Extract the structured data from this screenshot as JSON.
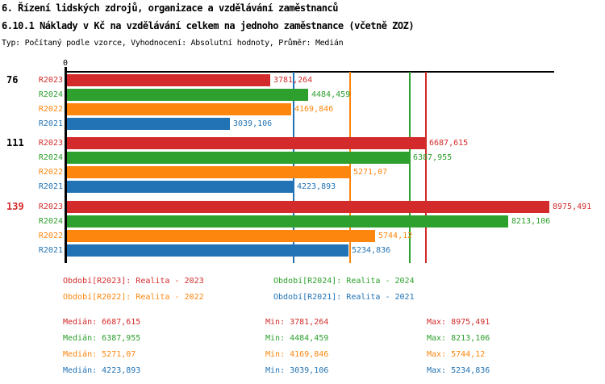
{
  "header": {
    "title": "6. Řízení lidských zdrojů, organizace a vzdělávání zaměstnanců",
    "subtitle": "6.10.1 Náklady v Kč na vzdělávání celkem na jednoho zaměstnance (včetně ZOZ)",
    "meta": "Typ: Počítaný podle vzorce, Vyhodnocení: Absolutní hodnoty, Průměr: Medián"
  },
  "colors": {
    "r2023": "#d32b2b",
    "r2024": "#2da02d",
    "r2022": "#fd860e",
    "r2021": "#2273b5",
    "axis": "#000000",
    "background": "#ffffff"
  },
  "chart_data": {
    "type": "bar",
    "orientation": "horizontal",
    "title": "6.10.1 Náklady v Kč na vzdělávání celkem na jednoho zaměstnance (včetně ZOZ)",
    "value_axis": {
      "origin_tick": "0",
      "min": 0,
      "max": 9087,
      "gridlines": false
    },
    "series": [
      {
        "id": "r2023",
        "name": "R2023",
        "color": "#d32b2b",
        "period": "Realita - 2023"
      },
      {
        "id": "r2024",
        "name": "R2024",
        "color": "#2da02d",
        "period": "Realita - 2024"
      },
      {
        "id": "r2022",
        "name": "R2022",
        "color": "#fd860e",
        "period": "Realita - 2022"
      },
      {
        "id": "r2021",
        "name": "R2021",
        "color": "#2273b5",
        "period": "Realita - 2021"
      }
    ],
    "groups": [
      {
        "label": "76",
        "label_color": "#000000",
        "values": [
          3781.264,
          4484.459,
          4169.846,
          3039.106
        ],
        "value_labels": [
          "3781,264",
          "4484,459",
          "4169,846",
          "3039,106"
        ]
      },
      {
        "label": "111",
        "label_color": "#000000",
        "values": [
          6687.615,
          6387.955,
          5271.07,
          4223.893
        ],
        "value_labels": [
          "6687,615",
          "6387,955",
          "5271,07",
          "4223,893"
        ]
      },
      {
        "label": "139",
        "label_color": "#d32b2b",
        "values": [
          8975.491,
          8213.106,
          5744.12,
          5234.836
        ],
        "value_labels": [
          "8975,491",
          "8213,106",
          "5744,12",
          "5234,836"
        ]
      }
    ],
    "medians": [
      6687.615,
      6387.955,
      5271.07,
      4223.893
    ],
    "legend_position": "bottom"
  },
  "legend": {
    "items": [
      {
        "label": "Období[R2023]: Realita - 2023",
        "series": "r2023"
      },
      {
        "label": "Období[R2024]: Realita - 2024",
        "series": "r2024"
      },
      {
        "label": "Období[R2022]: Realita - 2022",
        "series": "r2022"
      },
      {
        "label": "Období[R2021]: Realita - 2021",
        "series": "r2021"
      }
    ]
  },
  "stats": {
    "rows": [
      {
        "series": "r2023",
        "median": "Medián: 6687,615",
        "min": "Min: 3781,264",
        "max": "Max: 8975,491"
      },
      {
        "series": "r2024",
        "median": "Medián: 6387,955",
        "min": "Min: 4484,459",
        "max": "Max: 8213,106"
      },
      {
        "series": "r2022",
        "median": "Medián: 5271,07",
        "min": "Min: 4169,846",
        "max": "Max: 5744,12"
      },
      {
        "series": "r2021",
        "median": "Medián: 4223,893",
        "min": "Min: 3039,106",
        "max": "Max: 5234,836"
      }
    ]
  }
}
